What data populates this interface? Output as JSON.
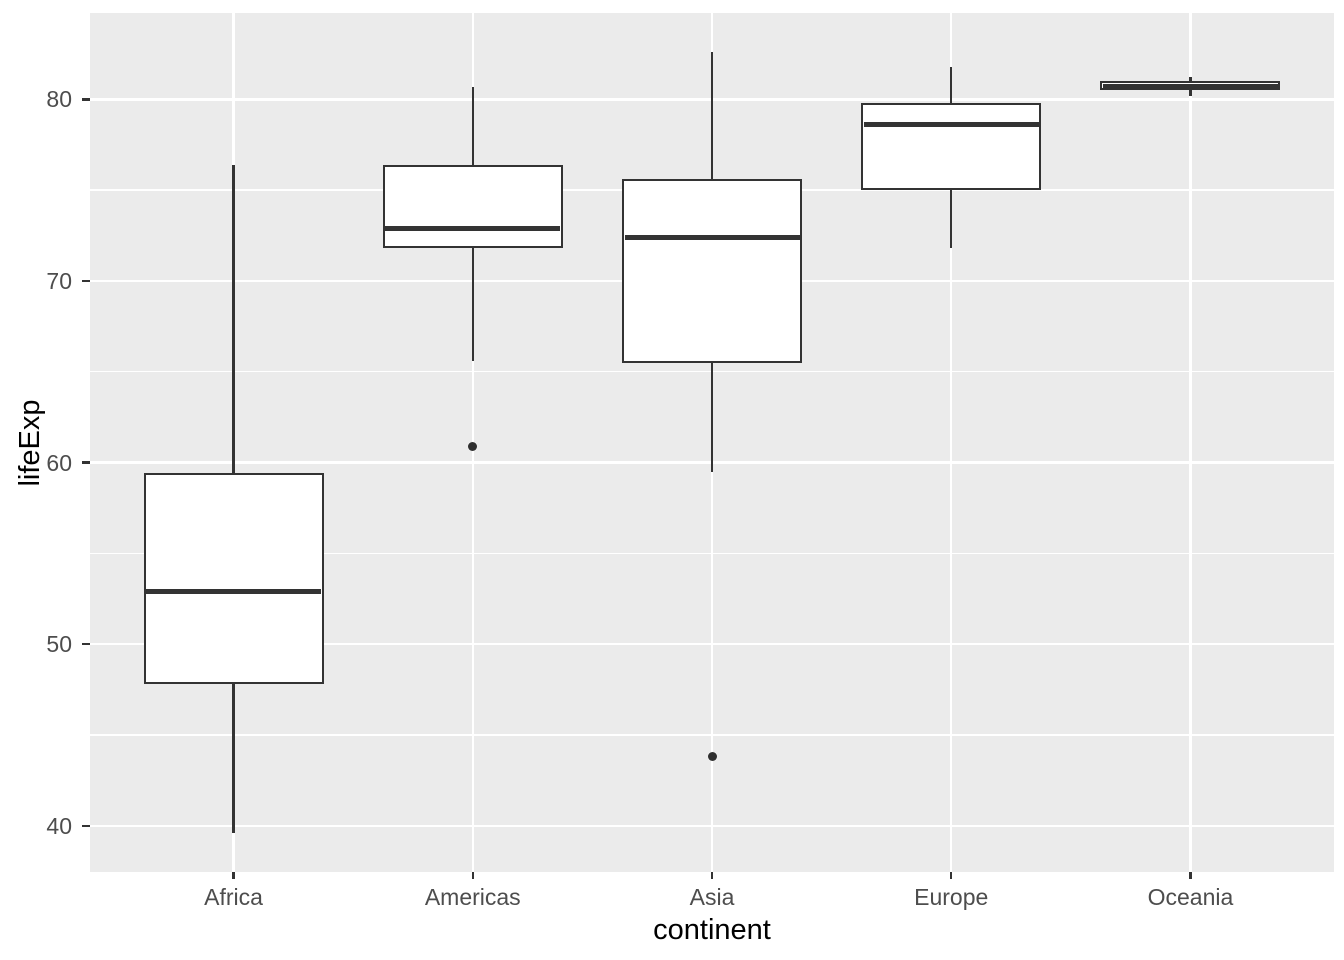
{
  "figure": {
    "panel_bg": "#EBEBEB",
    "grid_color": "#FFFFFF",
    "box_stroke_color": "#333333",
    "box_fill_color": "#FFFFFF",
    "axis_text_color": "#4D4D4D",
    "axis_title_color": "#000000"
  },
  "chart_data": {
    "type": "boxplot",
    "title": "",
    "xlabel": "continent",
    "ylabel": "lifeExp",
    "categories": [
      "Africa",
      "Americas",
      "Asia",
      "Europe",
      "Oceania"
    ],
    "y_ticks": [
      40,
      50,
      60,
      70,
      80
    ],
    "y_minor_ticks": [
      45,
      55,
      65,
      75
    ],
    "ylim": [
      37.46,
      84.75
    ],
    "grid": "major-and-minor, white on gray panel",
    "legend_position": "none",
    "series": [
      {
        "category": "Africa",
        "whisker_low": 39.6,
        "q1": 47.8,
        "median": 52.9,
        "q3": 59.4,
        "whisker_high": 76.4,
        "outliers": []
      },
      {
        "category": "Americas",
        "whisker_low": 65.6,
        "q1": 71.8,
        "median": 72.9,
        "q3": 76.4,
        "whisker_high": 80.7,
        "outliers": [
          60.9
        ]
      },
      {
        "category": "Asia",
        "whisker_low": 59.5,
        "q1": 65.5,
        "median": 72.4,
        "q3": 75.6,
        "whisker_high": 82.6,
        "outliers": [
          43.8
        ]
      },
      {
        "category": "Europe",
        "whisker_low": 71.8,
        "q1": 75.0,
        "median": 78.6,
        "q3": 79.8,
        "whisker_high": 81.8,
        "outliers": []
      },
      {
        "category": "Oceania",
        "whisker_low": 80.2,
        "q1": 80.5,
        "median": 80.7,
        "q3": 81.0,
        "whisker_high": 81.2,
        "outliers": []
      }
    ]
  }
}
